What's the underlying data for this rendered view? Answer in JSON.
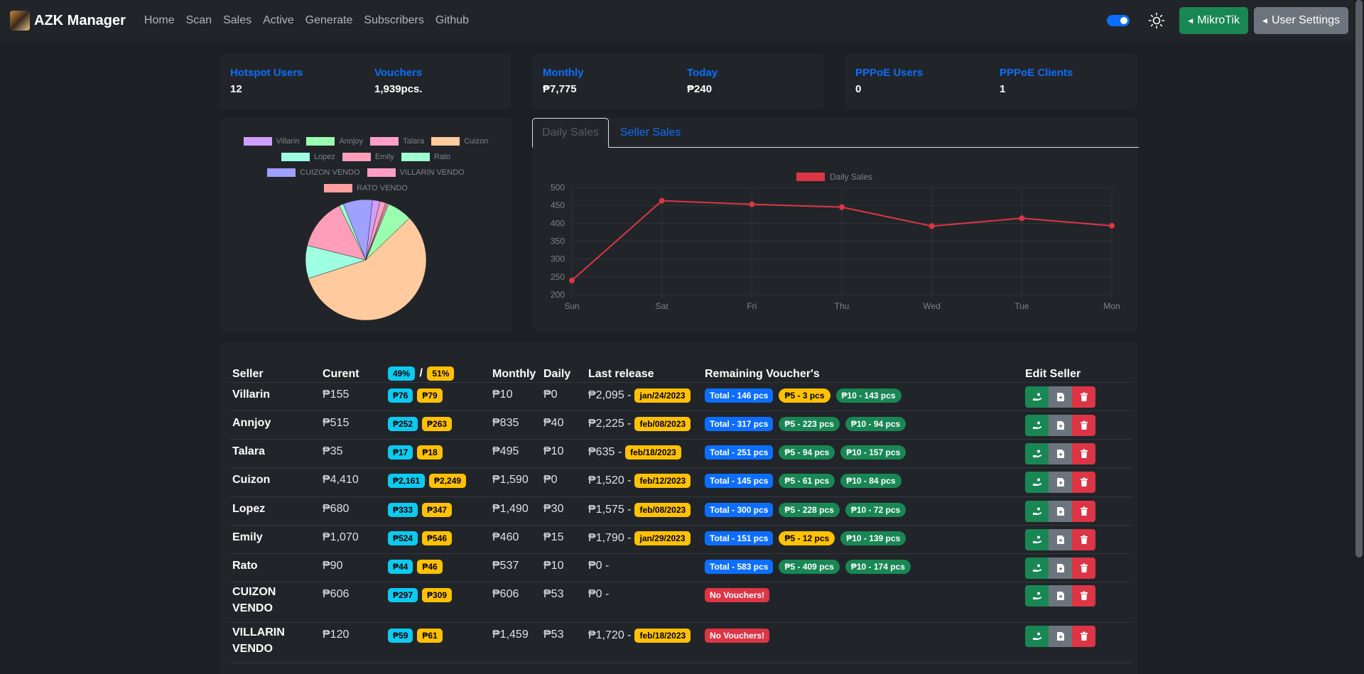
{
  "app": {
    "title": "AZK Manager"
  },
  "nav": {
    "links": [
      "Home",
      "Scan",
      "Sales",
      "Active",
      "Generate",
      "Subscribers",
      "Github"
    ]
  },
  "buttons": {
    "mikrotik": "MikroTik",
    "user_settings": "User Settings"
  },
  "stats": {
    "hotspot_users": {
      "label": "Hotspot Users",
      "value": "12"
    },
    "vouchers": {
      "label": "Vouchers",
      "value": "1,939pcs."
    },
    "monthly": {
      "label": "Monthly",
      "value": "₱7,775"
    },
    "today": {
      "label": "Today",
      "value": "₱240"
    },
    "pppoe_users": {
      "label": "PPPoE Users",
      "value": "0"
    },
    "pppoe_clients": {
      "label": "PPPoE Clients",
      "value": "1"
    }
  },
  "tabs": {
    "daily": "Daily Sales",
    "seller": "Seller Sales"
  },
  "colors": {
    "primary": "#0d6efd",
    "success": "#198754",
    "danger": "#dc3545",
    "warning": "#ffc107",
    "info": "#0dcaf0"
  },
  "chart_data": [
    {
      "type": "pie",
      "labels": [
        "Villarin",
        "Annjoy",
        "Talara",
        "Cuizon",
        "Lopez",
        "Emily",
        "Rato",
        "CUIZON VENDO",
        "VILLARIN VENDO",
        "RATO VENDO"
      ],
      "values": [
        155,
        515,
        35,
        4410,
        680,
        1070,
        90,
        606,
        120,
        30
      ],
      "colors": [
        "#cf9fff",
        "#9bffb0",
        "#ff9ecb",
        "#ffca9e",
        "#9effe0",
        "#ff9eba",
        "#9effd0",
        "#a0a0ff",
        "#ff9ec4",
        "#ff9f9f"
      ],
      "legend": "top"
    },
    {
      "type": "line",
      "title": "",
      "x": [
        "Sun",
        "Sat",
        "Fri",
        "Thu",
        "Wed",
        "Tue",
        "Mon"
      ],
      "series": [
        {
          "name": "Daily Sales",
          "values": [
            240,
            463,
            453,
            445,
            392,
            414,
            393
          ],
          "color": "#dc3545"
        }
      ],
      "ylim": [
        200,
        500
      ],
      "yticks": [
        200,
        250,
        300,
        350,
        400,
        450,
        500
      ],
      "grid": true,
      "legend": "top"
    }
  ],
  "table": {
    "headers": {
      "seller": "Seller",
      "current": "Curent",
      "pct_a": "49%",
      "slash": "/",
      "pct_b": "51%",
      "monthly": "Monthly",
      "daily": "Daily",
      "last_release": "Last release",
      "remaining": "Remaining Voucher's",
      "edit": "Edit Seller"
    },
    "rows": [
      {
        "seller": "Villarin",
        "current": "₱155",
        "share_a": "₱76",
        "share_b": "₱79",
        "monthly": "₱10",
        "daily": "₱0",
        "release": "₱2,095 -",
        "date": "jan/24/2023",
        "total": "Total - 146 pcs",
        "p5": "₱5 - 3 pcs",
        "p5_low": true,
        "p10": "₱10 - 143 pcs",
        "no_vouchers": ""
      },
      {
        "seller": "Annjoy",
        "current": "₱515",
        "share_a": "₱252",
        "share_b": "₱263",
        "monthly": "₱835",
        "daily": "₱40",
        "release": "₱2,225 -",
        "date": "feb/08/2023",
        "total": "Total - 317 pcs",
        "p5": "₱5 - 223 pcs",
        "p5_low": false,
        "p10": "₱10 - 94 pcs",
        "no_vouchers": ""
      },
      {
        "seller": "Talara",
        "current": "₱35",
        "share_a": "₱17",
        "share_b": "₱18",
        "monthly": "₱495",
        "daily": "₱10",
        "release": "₱635 -",
        "date": "feb/18/2023",
        "total": "Total - 251 pcs",
        "p5": "₱5 - 94 pcs",
        "p5_low": false,
        "p10": "₱10 - 157 pcs",
        "no_vouchers": ""
      },
      {
        "seller": "Cuizon",
        "current": "₱4,410",
        "share_a": "₱2,161",
        "share_b": "₱2,249",
        "monthly": "₱1,590",
        "daily": "₱0",
        "release": "₱1,520 -",
        "date": "feb/12/2023",
        "total": "Total - 145 pcs",
        "p5": "₱5 - 61 pcs",
        "p5_low": false,
        "p10": "₱10 - 84 pcs",
        "no_vouchers": ""
      },
      {
        "seller": "Lopez",
        "current": "₱680",
        "share_a": "₱333",
        "share_b": "₱347",
        "monthly": "₱1,490",
        "daily": "₱30",
        "release": "₱1,575 -",
        "date": "feb/08/2023",
        "total": "Total - 300 pcs",
        "p5": "₱5 - 228 pcs",
        "p5_low": false,
        "p10": "₱10 - 72 pcs",
        "no_vouchers": ""
      },
      {
        "seller": "Emily",
        "current": "₱1,070",
        "share_a": "₱524",
        "share_b": "₱546",
        "monthly": "₱460",
        "daily": "₱15",
        "release": "₱1,790 -",
        "date": "jan/29/2023",
        "total": "Total - 151 pcs",
        "p5": "₱5 - 12 pcs",
        "p5_low": true,
        "p10": "₱10 - 139 pcs",
        "no_vouchers": ""
      },
      {
        "seller": "Rato",
        "current": "₱90",
        "share_a": "₱44",
        "share_b": "₱46",
        "monthly": "₱537",
        "daily": "₱10",
        "release": "₱0 -",
        "date": "",
        "total": "Total - 583 pcs",
        "p5": "₱5 - 409 pcs",
        "p5_low": false,
        "p10": "₱10 - 174 pcs",
        "no_vouchers": ""
      },
      {
        "seller": "CUIZON VENDO",
        "current": "₱606",
        "share_a": "₱297",
        "share_b": "₱309",
        "monthly": "₱606",
        "daily": "₱53",
        "release": "₱0 -",
        "date": "",
        "total": "",
        "p5": "",
        "p5_low": false,
        "p10": "",
        "no_vouchers": "No Vouchers!"
      },
      {
        "seller": "VILLARIN VENDO",
        "current": "₱120",
        "share_a": "₱59",
        "share_b": "₱61",
        "monthly": "₱1,459",
        "daily": "₱53",
        "release": "₱1,720 -",
        "date": "feb/18/2023",
        "total": "",
        "p5": "",
        "p5_low": false,
        "p10": "",
        "no_vouchers": "No Vouchers!"
      }
    ]
  }
}
